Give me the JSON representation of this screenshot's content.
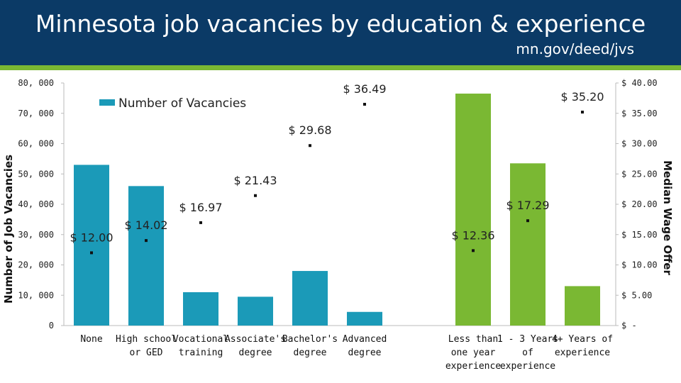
{
  "header": {
    "title": "Minnesota job vacancies by education & experience",
    "subtitle": "mn.gov/deed/jvs"
  },
  "chart_data": {
    "type": "bar",
    "ylabel": "Number of Job Vacancies",
    "y2label": "Median Wage Offer",
    "ylim": [
      0,
      80000
    ],
    "y2lim": [
      0,
      40
    ],
    "left_ticks": [
      "0",
      "10, 000",
      "20, 000",
      "30, 000",
      "40, 000",
      "50, 000",
      "60, 000",
      "70, 000",
      "80, 000"
    ],
    "right_ticks": [
      "$ -",
      "$ 5.00",
      "$ 10.00",
      "$ 15.00",
      "$ 20.00",
      "$ 25.00",
      "$ 30.00",
      "$ 35.00",
      "$ 40.00"
    ],
    "legend": {
      "label": "Number of Vacancies",
      "position": "top-left"
    },
    "colors": {
      "education": "#1b9ab8",
      "experience": "#7ab833",
      "header": "#0b3a66"
    },
    "categories": [
      {
        "label": [
          "None"
        ],
        "vacancies": 53000,
        "wage": 12.0,
        "wage_label": "$ 12.00",
        "group": "education"
      },
      {
        "label": [
          "High school",
          "or GED"
        ],
        "vacancies": 46000,
        "wage": 14.02,
        "wage_label": "$ 14.02",
        "group": "education"
      },
      {
        "label": [
          "Vocational",
          "training"
        ],
        "vacancies": 11000,
        "wage": 16.97,
        "wage_label": "$ 16.97",
        "group": "education"
      },
      {
        "label": [
          "Associate's",
          "degree"
        ],
        "vacancies": 9500,
        "wage": 21.43,
        "wage_label": "$ 21.43",
        "group": "education"
      },
      {
        "label": [
          "Bachelor's",
          "degree"
        ],
        "vacancies": 18000,
        "wage": 29.68,
        "wage_label": "$ 29.68",
        "group": "education"
      },
      {
        "label": [
          "Advanced",
          "degree"
        ],
        "vacancies": 4500,
        "wage": 36.49,
        "wage_label": "$ 36.49",
        "group": "education"
      },
      {
        "label": [
          "Less than",
          "one year",
          "experience"
        ],
        "vacancies": 76500,
        "wage": 12.36,
        "wage_label": "$ 12.36",
        "group": "experience"
      },
      {
        "label": [
          "1 - 3 Years",
          "of",
          "experience"
        ],
        "vacancies": 53500,
        "wage": 17.29,
        "wage_label": "$ 17.29",
        "group": "experience"
      },
      {
        "label": [
          "4+ Years of",
          "experience"
        ],
        "vacancies": 13000,
        "wage": 35.2,
        "wage_label": "$ 35.20",
        "group": "experience"
      }
    ]
  }
}
